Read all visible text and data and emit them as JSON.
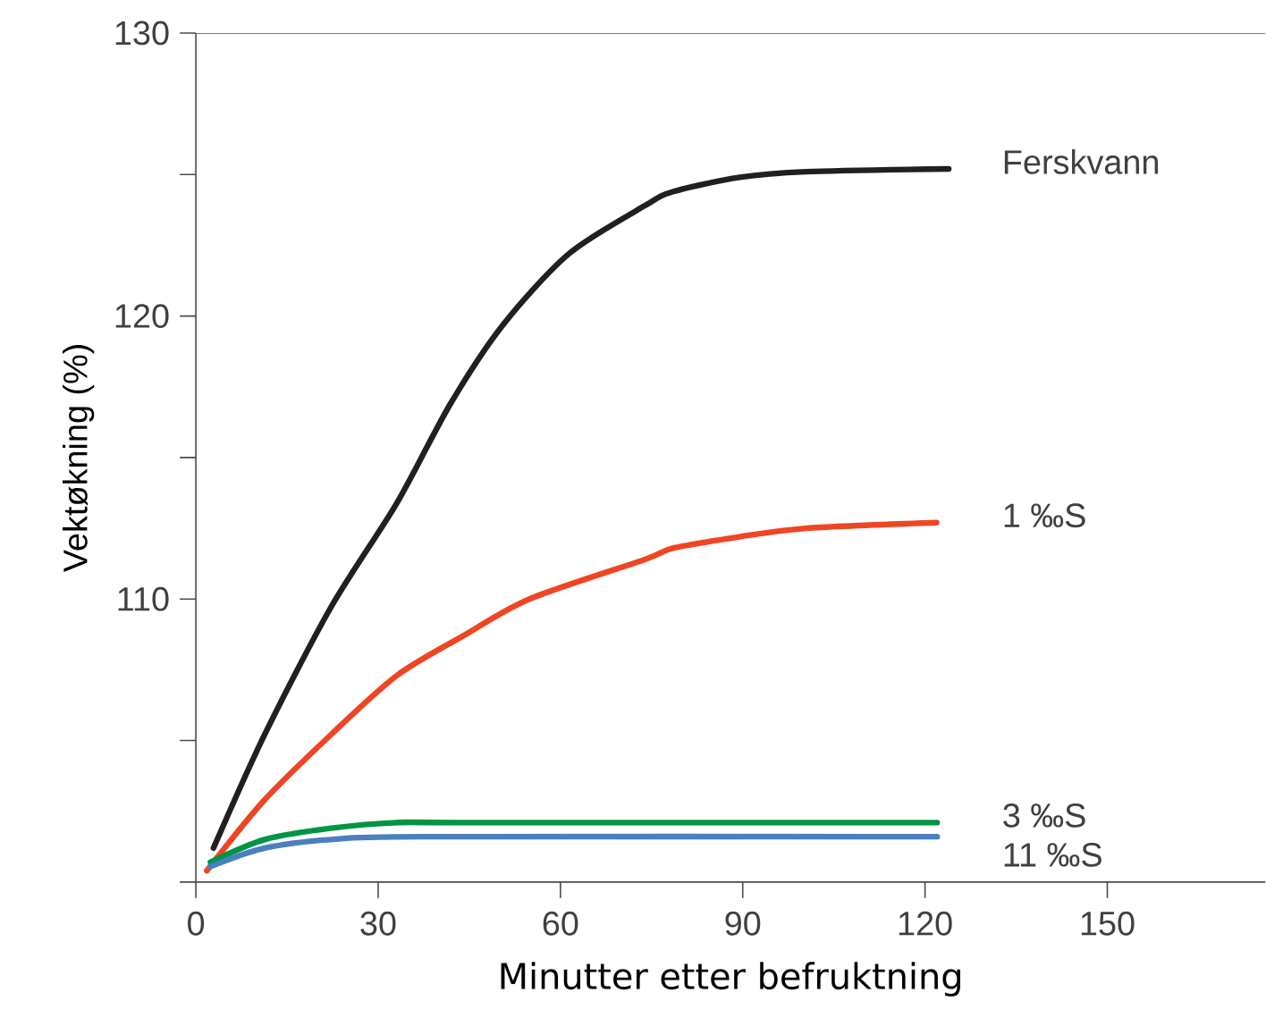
{
  "chart_data": {
    "type": "line",
    "xlabel": "Minutter etter befruktning",
    "ylabel": "Vektøkning (%)",
    "xlim": [
      0,
      176
    ],
    "xticks": [
      0,
      30,
      60,
      90,
      120,
      150
    ],
    "ylim": [
      100,
      130
    ],
    "yticks": [
      {
        "value": 100,
        "label": null
      },
      {
        "value": 105,
        "label": null
      },
      110,
      {
        "value": 115,
        "label": null
      },
      120,
      {
        "value": 125,
        "label": null
      },
      130
    ],
    "grid": false,
    "legend": false,
    "marker": "none",
    "line_style": "solid",
    "series": [
      {
        "name": "Ferskvann",
        "color": "#231f20",
        "x": [
          2.9,
          11.3,
          22.2,
          33.1,
          41.9,
          50.6,
          61.4,
          73.9,
          78.6,
          89.5,
          100.4,
          123.9
        ],
        "values": [
          101.2,
          105.2,
          109.7,
          113.4,
          116.9,
          119.7,
          122.2,
          123.9,
          124.4,
          124.9,
          125.1,
          125.2
        ]
      },
      {
        "name": "1 ‰S",
        "color": "#ef4523",
        "x": [
          1.8,
          11.3,
          22.2,
          33.1,
          44,
          54.9,
          73.9,
          78.6,
          89.5,
          100.4,
          121.9
        ],
        "values": [
          100.4,
          102.9,
          105.2,
          107.3,
          108.7,
          110.0,
          111.4,
          111.8,
          112.2,
          112.5,
          112.7
        ]
      },
      {
        "name": "3 ‰S",
        "color": "#009444",
        "x": [
          2.4,
          11.3,
          22.2,
          33.1,
          45,
          122
        ],
        "values": [
          100.7,
          101.5,
          101.9,
          102.1,
          102.1,
          102.1
        ]
      },
      {
        "name": "11 ‰S",
        "color": "#4a7fc1",
        "x": [
          2.4,
          11.3,
          22.2,
          37.5,
          122
        ],
        "values": [
          100.55,
          101.2,
          101.5,
          101.6,
          101.6
        ]
      }
    ]
  }
}
